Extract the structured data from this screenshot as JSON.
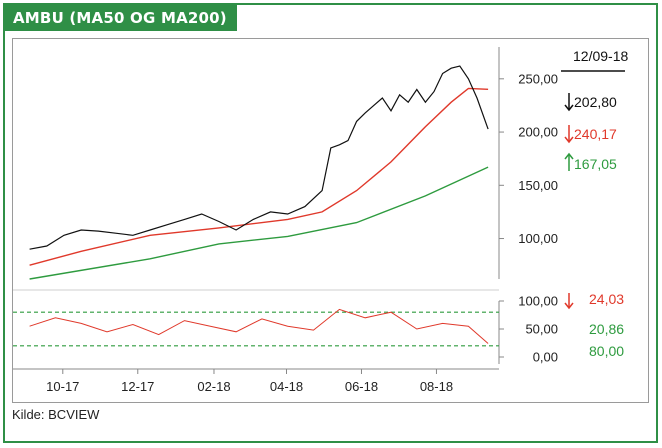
{
  "header": {
    "title": "AMBU (MA50 OG MA200)"
  },
  "footer": {
    "source": "Kilde: BCVIEW"
  },
  "colors": {
    "brand": "#2f8f46",
    "price": "#111111",
    "ma50": "#e0392b",
    "ma200": "#2e9b3f",
    "rsi": "#e0392b",
    "rsi_band": "#2e9b3f"
  },
  "chart_data": [
    {
      "type": "line",
      "panel": "price",
      "x_ticks": [
        "10-17",
        "12-17",
        "02-18",
        "04-18",
        "06-18",
        "08-18"
      ],
      "y_ticks": [
        "100,00",
        "150,00",
        "200,00",
        "250,00"
      ],
      "ylim": [
        62,
        278
      ],
      "date": "12/09-18",
      "series": [
        {
          "key": "price",
          "x": [
            "2017-09-04",
            "2017-09-18",
            "2017-10-02",
            "2017-10-16",
            "2017-10-30",
            "2017-11-13",
            "2017-11-27",
            "2017-12-11",
            "2017-12-25",
            "2018-01-08",
            "2018-01-22",
            "2018-02-05",
            "2018-02-19",
            "2018-03-05",
            "2018-03-19",
            "2018-04-02",
            "2018-04-16",
            "2018-04-30",
            "2018-05-07",
            "2018-05-14",
            "2018-05-21",
            "2018-05-28",
            "2018-06-04",
            "2018-06-11",
            "2018-06-18",
            "2018-06-25",
            "2018-07-02",
            "2018-07-09",
            "2018-07-16",
            "2018-07-23",
            "2018-07-30",
            "2018-08-06",
            "2018-08-13",
            "2018-08-20",
            "2018-08-27",
            "2018-09-03",
            "2018-09-12"
          ],
          "values": [
            90,
            93,
            103,
            108,
            107,
            105,
            103,
            108,
            113,
            118,
            123,
            116,
            108,
            118,
            125,
            123,
            130,
            145,
            185,
            188,
            192,
            210,
            218,
            225,
            232,
            220,
            235,
            228,
            240,
            228,
            238,
            255,
            260,
            262,
            250,
            232,
            202.8
          ],
          "last_label": "202,80"
        },
        {
          "key": "ma50",
          "x": [
            "2017-09-04",
            "2017-10-16",
            "2017-12-11",
            "2018-02-05",
            "2018-04-02",
            "2018-04-30",
            "2018-05-28",
            "2018-06-25",
            "2018-07-23",
            "2018-08-13",
            "2018-08-27",
            "2018-09-12"
          ],
          "values": [
            75,
            88,
            103,
            110,
            118,
            125,
            145,
            172,
            205,
            228,
            241,
            240.17
          ],
          "last_label": "240,17"
        },
        {
          "key": "ma200",
          "x": [
            "2017-09-04",
            "2017-12-11",
            "2018-02-05",
            "2018-04-02",
            "2018-05-28",
            "2018-07-23",
            "2018-09-12"
          ],
          "values": [
            62,
            81,
            95,
            102,
            115,
            140,
            167.05
          ],
          "last_label": "167,05"
        }
      ]
    },
    {
      "type": "line",
      "panel": "rsi",
      "y_ticks": [
        "0,00",
        "50,00",
        "100,00"
      ],
      "ylim": [
        0,
        100
      ],
      "upper_band": 80,
      "lower_band": 20,
      "series": [
        {
          "key": "rsi",
          "x": [
            "2017-09-04",
            "2017-09-25",
            "2017-10-16",
            "2017-11-06",
            "2017-11-27",
            "2017-12-18",
            "2018-01-08",
            "2018-01-29",
            "2018-02-19",
            "2018-03-12",
            "2018-04-02",
            "2018-04-23",
            "2018-05-14",
            "2018-06-04",
            "2018-06-25",
            "2018-07-16",
            "2018-08-06",
            "2018-08-27",
            "2018-09-12"
          ],
          "values": [
            55,
            70,
            60,
            45,
            58,
            40,
            65,
            55,
            45,
            68,
            55,
            48,
            85,
            70,
            80,
            50,
            60,
            55,
            24.03
          ],
          "last_label": "24,03"
        }
      ],
      "legend_values": [
        "20,86",
        "80,00"
      ]
    }
  ]
}
